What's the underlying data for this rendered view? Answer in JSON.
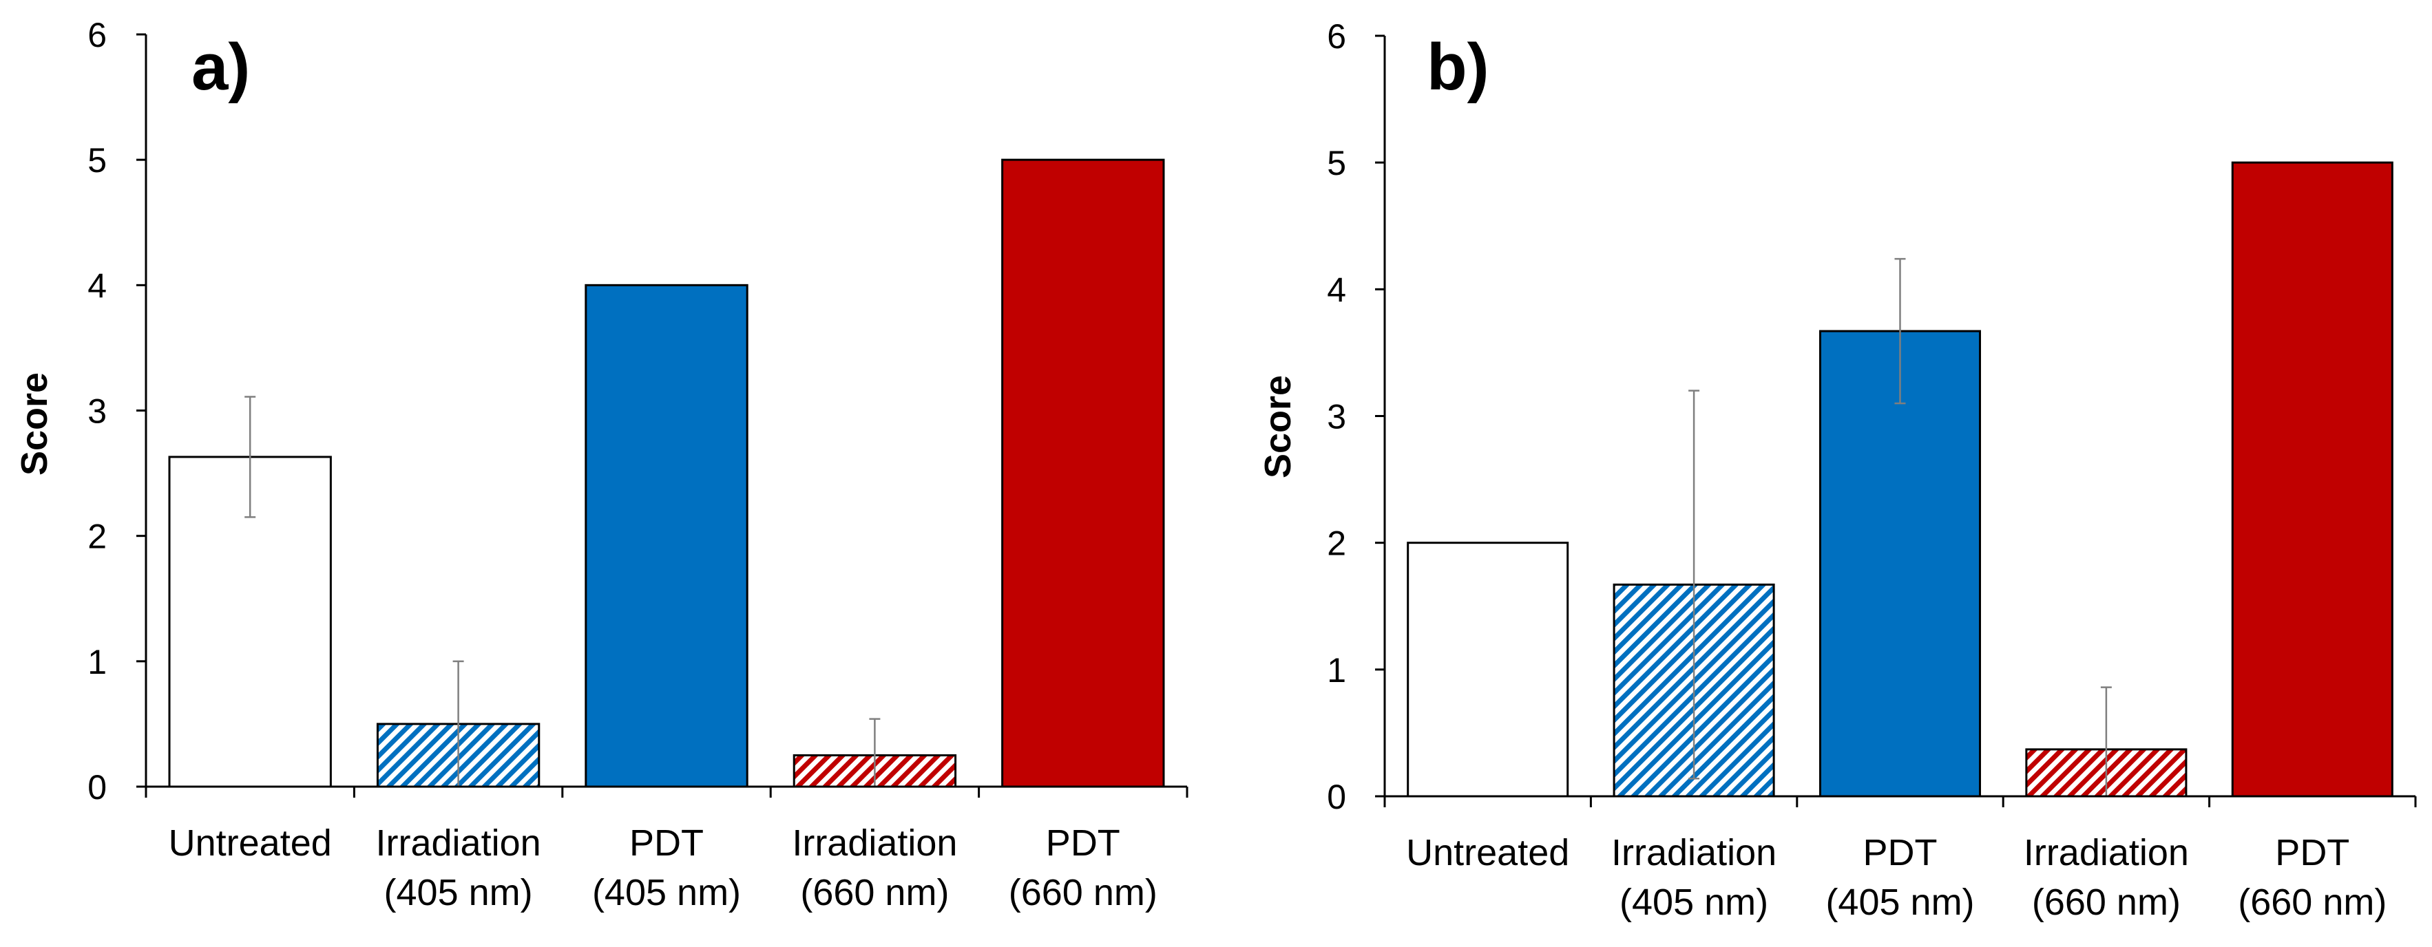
{
  "colors": {
    "blue": "#0070C0",
    "red": "#C00000",
    "white": "#FFFFFF",
    "outline": "#000000",
    "error_bar": "#7F7F7F"
  },
  "chart_data": [
    {
      "type": "bar",
      "panel_label": "a)",
      "ylabel": "Score",
      "xlabel": "",
      "ylim": [
        0,
        6
      ],
      "yticks": [
        "0",
        "1",
        "2",
        "3",
        "4",
        "5",
        "6"
      ],
      "categories": [
        {
          "line1": "Untreated",
          "line2": ""
        },
        {
          "line1": "Irradiation",
          "line2": "(405 nm)"
        },
        {
          "line1": "PDT",
          "line2": "(405 nm)"
        },
        {
          "line1": "Irradiation",
          "line2": "(660 nm)"
        },
        {
          "line1": "PDT",
          "line2": "(660 nm)"
        }
      ],
      "values": [
        2.63,
        0.5,
        4.0,
        0.25,
        5.0
      ],
      "errors": [
        0.48,
        0.5,
        0.0,
        0.29,
        0.0
      ],
      "fills": [
        "white",
        "blue-hatch",
        "blue",
        "red-hatch",
        "red"
      ]
    },
    {
      "type": "bar",
      "panel_label": "b)",
      "ylabel": "Score",
      "xlabel": "",
      "ylim": [
        0,
        6
      ],
      "yticks": [
        "0",
        "1",
        "2",
        "3",
        "4",
        "5",
        "6"
      ],
      "categories": [
        {
          "line1": "Untreated",
          "line2": ""
        },
        {
          "line1": "Irradiation",
          "line2": "(405 nm)"
        },
        {
          "line1": "PDT",
          "line2": "(405 nm)"
        },
        {
          "line1": "Irradiation",
          "line2": "(660 nm)"
        },
        {
          "line1": "PDT",
          "line2": "(660 nm)"
        }
      ],
      "values": [
        2.0,
        1.67,
        3.67,
        0.37,
        5.0
      ],
      "errors": [
        0.0,
        1.53,
        0.57,
        0.49,
        0.0
      ],
      "fills": [
        "white",
        "blue-hatch",
        "blue",
        "red-hatch",
        "red"
      ]
    }
  ]
}
